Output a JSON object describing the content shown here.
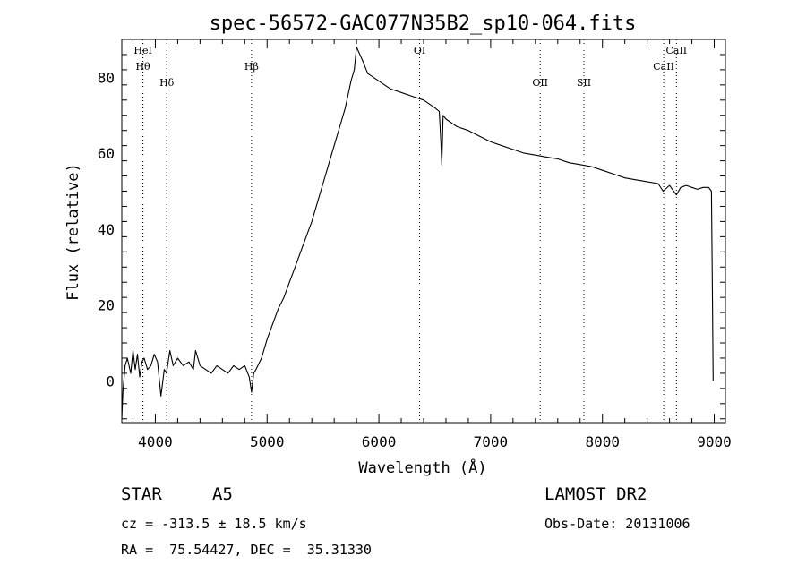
{
  "chart_data": {
    "type": "line",
    "title": "spec-56572-GAC077N35B2_sp10-064.fits",
    "xlabel": "Wavelength (Å)",
    "ylabel": "Flux (relative)",
    "xlim": [
      3700,
      9100
    ],
    "ylim": [
      -11,
      90
    ],
    "xticks": [
      4000,
      5000,
      6000,
      7000,
      8000,
      9000
    ],
    "yticks": [
      0,
      20,
      40,
      60,
      80
    ],
    "grid": false,
    "series": [
      {
        "x": [
          3700,
          3710,
          3730,
          3750,
          3780,
          3800,
          3820,
          3840,
          3860,
          3880,
          3900,
          3930,
          3960,
          3990,
          4020,
          4050,
          4080,
          4100,
          4130,
          4160,
          4200,
          4250,
          4300,
          4340,
          4360,
          4400,
          4450,
          4500,
          4550,
          4600,
          4650,
          4700,
          4750,
          4800,
          4840,
          4861,
          4880,
          4900,
          4950,
          5000,
          5050,
          5100,
          5150,
          5200,
          5250,
          5300,
          5350,
          5400,
          5450,
          5500,
          5550,
          5600,
          5650,
          5700,
          5750,
          5780,
          5800,
          5830,
          5860,
          5900,
          6000,
          6100,
          6200,
          6300,
          6400,
          6500,
          6540,
          6555,
          6563,
          6575,
          6600,
          6700,
          6800,
          6900,
          7000,
          7100,
          7200,
          7300,
          7400,
          7500,
          7600,
          7700,
          7800,
          7900,
          8000,
          8100,
          8200,
          8300,
          8400,
          8498,
          8542,
          8600,
          8662,
          8700,
          8750,
          8800,
          8850,
          8900,
          8950,
          8975,
          8985,
          8990
        ],
        "y": [
          -10,
          -3,
          4,
          6,
          2,
          8,
          3,
          7,
          1,
          5,
          6,
          3,
          4,
          7,
          5,
          -4,
          3,
          2,
          8,
          4,
          6,
          4,
          5,
          3,
          8,
          4,
          3,
          2,
          4,
          3,
          2,
          4,
          3,
          4,
          1,
          -3,
          2,
          3,
          6,
          11,
          15,
          19,
          22,
          26,
          30,
          34,
          38,
          42,
          47,
          52,
          57,
          62,
          67,
          72,
          79,
          82,
          88,
          86,
          84,
          81,
          79,
          77,
          76,
          75,
          74,
          72,
          71,
          63,
          57,
          70,
          69,
          67,
          66,
          64.5,
          63,
          62,
          61,
          60,
          59.5,
          59,
          58.5,
          57.5,
          57,
          56.5,
          55.5,
          54.5,
          53.5,
          53,
          52.5,
          52,
          50,
          51.5,
          49,
          51,
          51.5,
          51,
          50.5,
          51,
          51,
          50,
          20,
          0
        ]
      }
    ],
    "lines": [
      {
        "label": "Hθ",
        "x": 3889,
        "row": 1
      },
      {
        "label": "HeI",
        "x": 3889,
        "row": 0
      },
      {
        "label": "Hδ",
        "x": 4102,
        "row": 2
      },
      {
        "label": "Hβ",
        "x": 4861,
        "row": 1
      },
      {
        "label": "OI",
        "x": 6364,
        "row": 0
      },
      {
        "label": "OII",
        "x": 7443,
        "row": 2
      },
      {
        "label": "SII",
        "x": 7834,
        "row": 2
      },
      {
        "label": "CaII",
        "x": 8548,
        "row": 1
      },
      {
        "label": "CaII",
        "x": 8662,
        "row": 0
      }
    ]
  },
  "info": {
    "class": "STAR",
    "subclass": "A5",
    "survey": "LAMOST DR2",
    "cz": "cz = -313.5 ± 18.5 km/s",
    "obs_date": "Obs-Date: 20131006",
    "coords": "RA =  75.54427, DEC =  35.31330"
  }
}
